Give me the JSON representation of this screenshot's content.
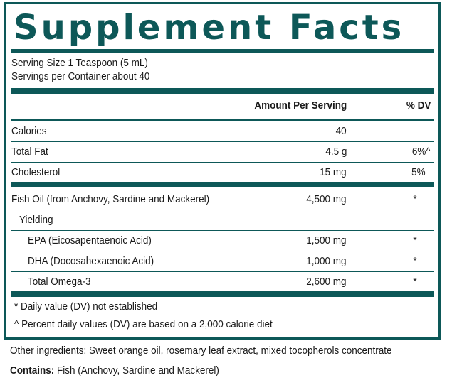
{
  "title": "Supplement Facts",
  "serving_size": "Serving Size 1 Teaspoon (5 mL)",
  "servings_per_container": "Servings per Container about 40",
  "columns": {
    "amount": "Amount Per Serving",
    "dv": "% DV"
  },
  "rows": [
    {
      "label": "Calories",
      "amount": "40",
      "dv": ""
    },
    {
      "label": "Total Fat",
      "amount": "4.5 g",
      "dv": "6%^"
    },
    {
      "label": "Cholesterol",
      "amount": "15 mg",
      "dv": "5%"
    },
    {
      "label": "Fish Oil (from Anchovy, Sardine and Mackerel)",
      "amount": "4,500 mg",
      "dv": "*"
    },
    {
      "label": "Yielding",
      "amount": "",
      "dv": ""
    },
    {
      "label": "EPA (Eicosapentaenoic Acid)",
      "amount": "1,500 mg",
      "dv": "*"
    },
    {
      "label": "DHA (Docosahexaenoic Acid)",
      "amount": "1,000 mg",
      "dv": "*"
    },
    {
      "label": "Total Omega-3",
      "amount": "2,600 mg",
      "dv": "*"
    }
  ],
  "footnotes": [
    "* Daily value (DV) not established",
    "^ Percent daily values (DV) are based on a 2,000 calorie diet"
  ],
  "other_ingredients": "Other ingredients: Sweet orange oil, rosemary leaf extract, mixed tocopherols concentrate",
  "contains_label": "Contains:",
  "contains_text": " Fish (Anchovy, Sardine and Mackerel)",
  "colors": {
    "brand": "#0d5858",
    "text": "#1a1a1a"
  }
}
